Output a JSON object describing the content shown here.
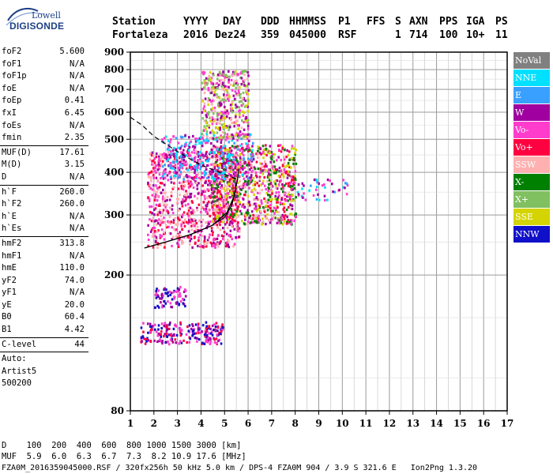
{
  "logo": {
    "line1": "Lowell",
    "line2": "DIGISONDE"
  },
  "header": {
    "labels": [
      "Station",
      "YYYY",
      "DAY",
      "DDD",
      "HHMMSS",
      "P1",
      "FFS",
      "S",
      "AXN",
      "PPS",
      "IGA",
      "PS"
    ],
    "values": [
      "Fortaleza",
      "2016",
      "Dez24",
      "359",
      "045000",
      "RSF",
      "",
      "1",
      "714",
      "100",
      "10+",
      "11"
    ]
  },
  "params_groups": [
    [
      {
        "k": "foF2",
        "v": "5.600"
      },
      {
        "k": "foF1",
        "v": "N/A"
      },
      {
        "k": "foF1p",
        "v": "N/A"
      },
      {
        "k": "foE",
        "v": "N/A"
      },
      {
        "k": "foEp",
        "v": "0.41"
      },
      {
        "k": "fxI",
        "v": "6.45"
      },
      {
        "k": "foEs",
        "v": "N/A"
      },
      {
        "k": "fmin",
        "v": "2.35"
      }
    ],
    [
      {
        "k": "MUF(D)",
        "v": "17.61"
      },
      {
        "k": "M(D)",
        "v": "3.15"
      },
      {
        "k": "D",
        "v": "N/A"
      }
    ],
    [
      {
        "k": "h`F",
        "v": "260.0"
      },
      {
        "k": "h`F2",
        "v": "260.0"
      },
      {
        "k": "h`E",
        "v": "N/A"
      },
      {
        "k": "h`Es",
        "v": "N/A"
      }
    ],
    [
      {
        "k": "hmF2",
        "v": "313.8"
      },
      {
        "k": "hmF1",
        "v": "N/A"
      },
      {
        "k": "hmE",
        "v": "110.0"
      },
      {
        "k": "yF2",
        "v": "74.0"
      },
      {
        "k": "yF1",
        "v": "N/A"
      },
      {
        "k": "yE",
        "v": "20.0"
      },
      {
        "k": "B0",
        "v": "60.4"
      },
      {
        "k": "B1",
        "v": "4.42"
      }
    ],
    [
      {
        "k": "C-level",
        "v": "44"
      }
    ]
  ],
  "auto_lines": [
    "Auto:",
    "Artist5",
    "500200"
  ],
  "legend": [
    {
      "label": "NoVal",
      "color": "#808080"
    },
    {
      "label": "NNE",
      "color": "#00e0ff"
    },
    {
      "label": "E",
      "color": "#3aa0ff"
    },
    {
      "label": "W",
      "color": "#a000a0"
    },
    {
      "label": "Vo-",
      "color": "#ff3ccc"
    },
    {
      "label": "Vo+",
      "color": "#ff0040"
    },
    {
      "label": "SSW",
      "color": "#ffb0b0"
    },
    {
      "label": "X-",
      "color": "#008000"
    },
    {
      "label": "X+",
      "color": "#80c060"
    },
    {
      "label": "SSE",
      "color": "#d4d400"
    },
    {
      "label": "NNW",
      "color": "#1010c8"
    }
  ],
  "footer": {
    "row1": "D    100  200  400  600  800 1000 1500 3000 [km]",
    "row2": "MUF  5.9  6.0  6.3  6.7  7.3  8.2 10.9 17.6 [MHz]",
    "row3": "FZA0M_2016359045000.RSF / 320fx256h 50 kHz 5.0 km / DPS-4 FZA0M 904 / 3.9 S 321.6 E   Ion2Png 1.3.20"
  },
  "chart_data": {
    "type": "scatter",
    "title": "",
    "xlabel": "",
    "ylabel": "",
    "xlim": [
      1,
      17
    ],
    "ylim": [
      80,
      900
    ],
    "x_ticks": [
      1,
      2,
      3,
      4,
      5,
      6,
      7,
      8,
      9,
      10,
      11,
      12,
      13,
      14,
      15,
      16,
      17
    ],
    "y_ticks": [
      80,
      200,
      300,
      400,
      500,
      600,
      700,
      800,
      900
    ],
    "yscale": "log",
    "grid": true,
    "minor_x": 0.5,
    "legend_position": "right",
    "clusters": [
      {
        "name": "E-layer echoes",
        "x_range": [
          1.4,
          4.9
        ],
        "y_range": [
          125,
          145
        ],
        "series": [
          "W",
          "NNW",
          "Vo-",
          "Vo+"
        ]
      },
      {
        "name": "Es traces",
        "x_range": [
          2.0,
          3.4
        ],
        "y_range": [
          160,
          185
        ],
        "series": [
          "NNW",
          "W",
          "Vo-"
        ]
      },
      {
        "name": "F-layer O trace",
        "x_range": [
          1.7,
          5.6
        ],
        "y_range": [
          240,
          460
        ],
        "series": [
          "Vo+",
          "Vo-",
          "W",
          "SSW"
        ]
      },
      {
        "name": "F-layer spread",
        "x_range": [
          4.4,
          8.0
        ],
        "y_range": [
          280,
          480
        ],
        "series": [
          "Vo+",
          "Vo-",
          "W",
          "SSW",
          "SSE",
          "X-"
        ]
      },
      {
        "name": "F-layer oblique",
        "x_range": [
          2.3,
          6.2
        ],
        "y_range": [
          380,
          520
        ],
        "series": [
          "NNE",
          "E",
          "Vo-",
          "W"
        ]
      },
      {
        "name": "Spread F high",
        "x_range": [
          4.0,
          6.0
        ],
        "y_range": [
          500,
          790
        ],
        "series": [
          "SSE",
          "Vo-",
          "W",
          "X+",
          "SSW"
        ]
      },
      {
        "name": "Far echoes",
        "x_range": [
          8.0,
          10.2
        ],
        "y_range": [
          330,
          380
        ],
        "series": [
          "W",
          "Vo-",
          "NNE",
          "E"
        ]
      }
    ],
    "profile_curve": [
      [
        1.6,
        240
      ],
      [
        2.5,
        250
      ],
      [
        3.5,
        262
      ],
      [
        4.5,
        280
      ],
      [
        5.1,
        305
      ],
      [
        5.4,
        340
      ],
      [
        5.55,
        380
      ],
      [
        5.6,
        410
      ]
    ],
    "profile_curve2": [
      [
        1.6,
        240
      ],
      [
        2.5,
        250
      ],
      [
        3.5,
        262
      ],
      [
        4.4,
        278
      ],
      [
        5.0,
        295
      ],
      [
        5.3,
        320
      ],
      [
        5.5,
        360
      ]
    ],
    "muf_curve": [
      [
        1.0,
        580
      ],
      [
        1.5,
        550
      ],
      [
        2.0,
        510
      ],
      [
        3.0,
        460
      ],
      [
        4.0,
        420
      ],
      [
        5.0,
        395
      ],
      [
        5.6,
        380
      ]
    ]
  }
}
